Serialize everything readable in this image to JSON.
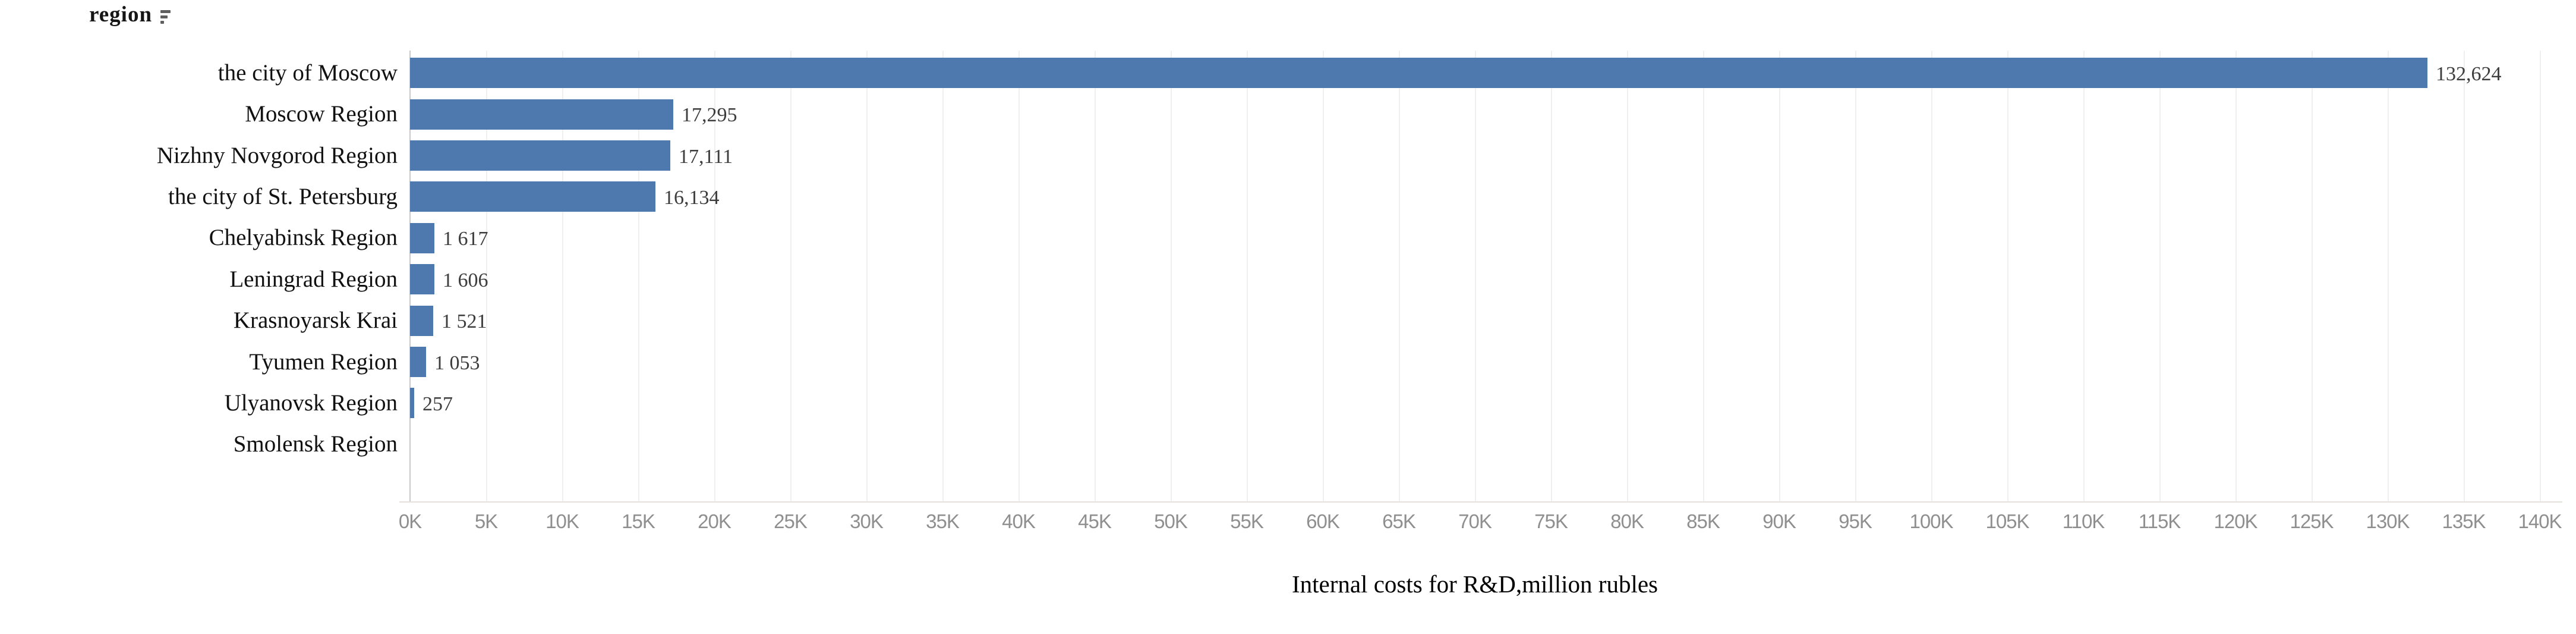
{
  "header": {
    "label": "region",
    "sort_icon": "sort-descending-icon"
  },
  "chart_data": {
    "type": "bar",
    "orientation": "horizontal",
    "title": "",
    "xlabel": "Internal costs for R&D,million rubles",
    "ylabel": "region",
    "categories": [
      "the city of Moscow",
      "Moscow Region",
      "Nizhny Novgorod Region",
      "the city of St. Petersburg",
      "Chelyabinsk Region",
      "Leningrad Region",
      "Krasnoyarsk Krai",
      "Tyumen Region",
      "Ulyanovsk Region",
      "Smolensk Region"
    ],
    "values": [
      132624,
      17295,
      17111,
      16134,
      1617,
      1606,
      1521,
      1053,
      257,
      0
    ],
    "value_labels": [
      "132,624",
      "17,295",
      "17,111",
      "16,134",
      "1 617",
      "1 606",
      "1 521",
      "1 053",
      "257",
      ""
    ],
    "xlim": [
      0,
      140000
    ],
    "x_ticks": [
      "0K",
      "5K",
      "10K",
      "15K",
      "20K",
      "25K",
      "30K",
      "35K",
      "40K",
      "45K",
      "50K",
      "55K",
      "60K",
      "65K",
      "70K",
      "75K",
      "80K",
      "85K",
      "90K",
      "95K",
      "100K",
      "105K",
      "110K",
      "115K",
      "120K",
      "125K",
      "130K",
      "135K",
      "140K"
    ],
    "grid": "vertical",
    "legend": "none",
    "sort": "descending",
    "bar_color": "#4d79ae"
  },
  "colors": {
    "bar": "#4d79ae",
    "value_text": "#3d3d3d",
    "category_text": "#111111",
    "tick_text": "#8f8f8f",
    "gridline": "#f2efec",
    "axis_line": "#c9c9cc",
    "background": "#ffffff"
  }
}
